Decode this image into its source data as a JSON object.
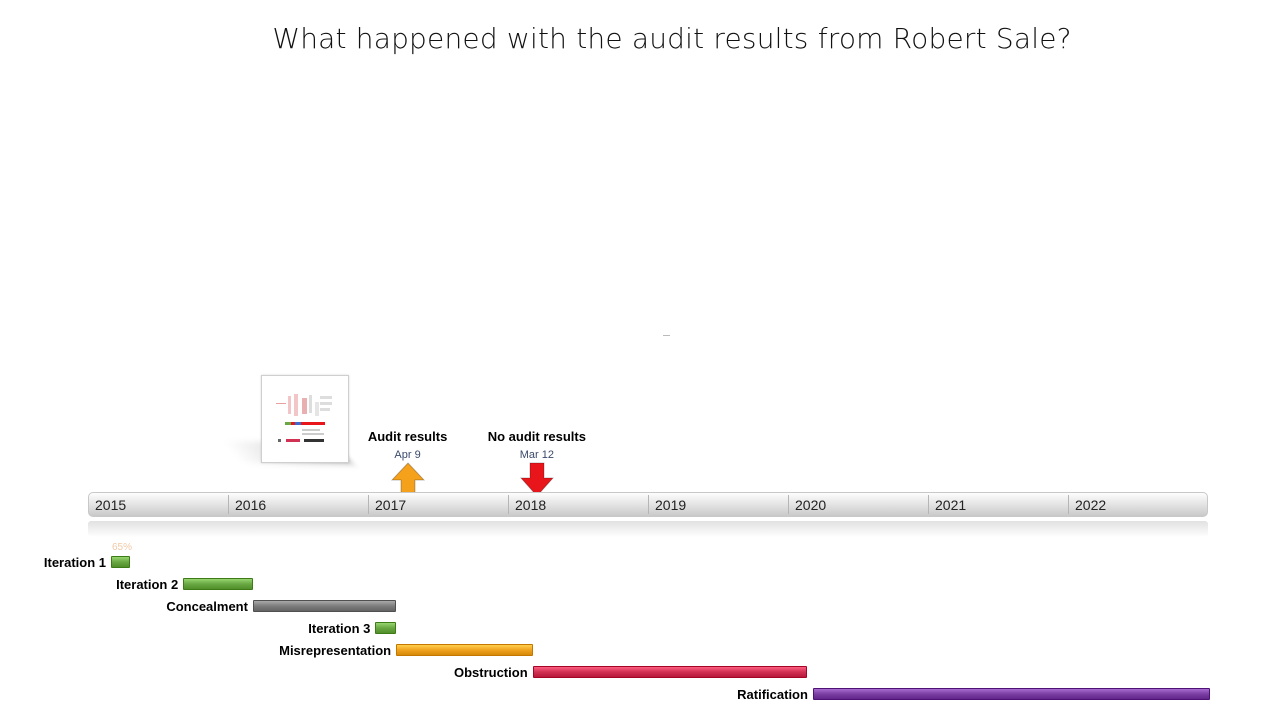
{
  "title": "What happened with the audit results from Robert Sale?",
  "axis": {
    "start_year": 2015,
    "end_year": 2023,
    "years": [
      "2015",
      "2016",
      "2017",
      "2018",
      "2019",
      "2020",
      "2021",
      "2022"
    ]
  },
  "milestones": [
    {
      "title": "Audit results",
      "date_label": "Apr 9",
      "date": "2017-04-09",
      "direction": "up",
      "color": "#f5a11c"
    },
    {
      "title": "No audit results",
      "date_label": "Mar 12",
      "date": "2018-03-12",
      "direction": "down",
      "color": "#e8161b"
    }
  ],
  "tasks": [
    {
      "label": "Iteration 1",
      "start": "2015-01-01",
      "end": "2015-02-15",
      "color": "#6aa843",
      "percent": "65%"
    },
    {
      "label": "Iteration 2",
      "start": "2015-09-01",
      "end": "2016-03-01",
      "color": "#6aa843"
    },
    {
      "label": "Concealment",
      "start": "2016-03-01",
      "end": "2017-03-10",
      "color": "#7d7d7d"
    },
    {
      "label": "Iteration 3",
      "start": "2017-01-15",
      "end": "2017-03-10",
      "color": "#6aa843"
    },
    {
      "label": "Misrepresentation",
      "start": "2017-03-10",
      "end": "2018-03-01",
      "color": "#f0a320"
    },
    {
      "label": "Obstruction",
      "start": "2018-03-01",
      "end": "2020-02-15",
      "color": "#d13153"
    },
    {
      "label": "Ratification",
      "start": "2020-03-01",
      "end": "2022-12-31",
      "color": "#7b3fa3"
    }
  ]
}
